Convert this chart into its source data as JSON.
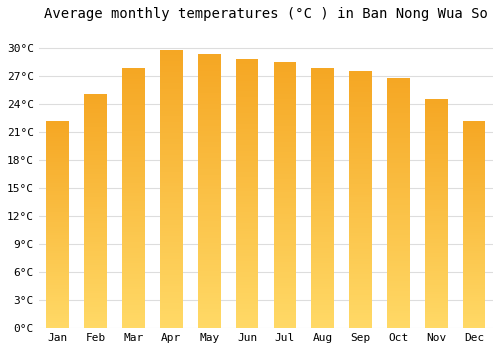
{
  "months": [
    "Jan",
    "Feb",
    "Mar",
    "Apr",
    "May",
    "Jun",
    "Jul",
    "Aug",
    "Sep",
    "Oct",
    "Nov",
    "Dec"
  ],
  "values": [
    22.2,
    25.0,
    27.8,
    29.8,
    29.3,
    28.8,
    28.5,
    27.8,
    27.5,
    26.8,
    24.5,
    22.2
  ],
  "bar_color_dark": "#F5A623",
  "bar_color_light": "#FFD966",
  "title": "Average monthly temperatures (°C ) in Ban Nong Wua So",
  "ylabel_ticks": [
    "0°C",
    "3°C",
    "6°C",
    "9°C",
    "12°C",
    "15°C",
    "18°C",
    "21°C",
    "24°C",
    "27°C",
    "30°C"
  ],
  "ytick_values": [
    0,
    3,
    6,
    9,
    12,
    15,
    18,
    21,
    24,
    27,
    30
  ],
  "ylim": [
    0,
    32
  ],
  "background_color": "#ffffff",
  "grid_color": "#dddddd",
  "title_fontsize": 10,
  "tick_fontsize": 8
}
